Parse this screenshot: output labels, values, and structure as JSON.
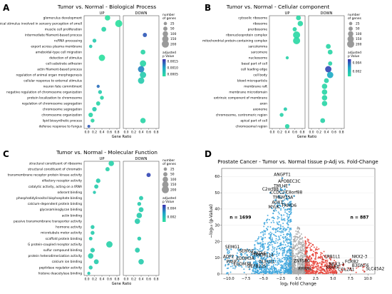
{
  "panels": [
    {
      "letter": "A",
      "title": "Tumor vs. Normal - Biological Process",
      "facets": [
        "UP",
        "DOWN"
      ],
      "xlabel": "Gene Ratio",
      "xticks": [
        "0.0",
        "0.2",
        "0.4",
        "0.6",
        "0.8"
      ],
      "size_legend_title": [
        "number",
        "of genes"
      ],
      "size_legend": [
        25,
        50,
        100,
        150,
        200
      ],
      "color_legend_title": [
        "adjusted",
        "p Value"
      ],
      "color_legend_ticks": [
        "0.0015",
        "0.0010",
        "0.0005"
      ],
      "chart_data": {
        "type": "scatter",
        "terms": [
          "glomerulus development",
          "detection of chemical stimulus involved in sensory perception of smell",
          "muscle cell proliferation",
          "intermediate filament-based process",
          "ncRNA processing",
          "export across plasma membrane",
          "ameboidal-type cell migration",
          "detection of stimulus",
          "cell-substrate adhesion",
          "actin filament-based process",
          "regulation of animal organ morphogenesis",
          "cellular response to external stimulus",
          "neuron fate commitment",
          "negative regulation of chromosome organization",
          "protein localization to chromosome",
          "regulation of chromosome segregation",
          "chromosome segregation",
          "chromosome organization",
          "lipid biosynthetic process",
          "defense response to fungus"
        ],
        "up": [
          {
            "term": "glomerulus development",
            "ratio": 0.55,
            "genes": 100,
            "p": 0.0004
          },
          {
            "term": "detection of chemical stimulus involved in sensory perception of smell",
            "ratio": 0.85,
            "genes": 200,
            "p": 0.0004
          },
          {
            "term": "muscle cell proliferation",
            "ratio": 0.45,
            "genes": 75,
            "p": 0.0005
          },
          {
            "term": "ncRNA processing",
            "ratio": 0.2,
            "genes": 40,
            "p": 0.0006
          },
          {
            "term": "export across plasma membrane",
            "ratio": 0.1,
            "genes": 25,
            "p": 0.0006
          },
          {
            "term": "detection of stimulus",
            "ratio": 0.4,
            "genes": 150,
            "p": 0.0004
          },
          {
            "term": "neuron fate commitment",
            "ratio": 0.3,
            "genes": 20,
            "p": 0.0012
          },
          {
            "term": "negative regulation of chromosome organization",
            "ratio": 0.35,
            "genes": 40,
            "p": 0.0006
          },
          {
            "term": "protein localization to chromosome",
            "ratio": 0.4,
            "genes": 40,
            "p": 0.0005
          },
          {
            "term": "regulation of chromosome segregation",
            "ratio": 0.3,
            "genes": 50,
            "p": 0.0005
          },
          {
            "term": "chromosome segregation",
            "ratio": 0.2,
            "genes": 60,
            "p": 0.0006
          },
          {
            "term": "chromosome organization",
            "ratio": 0.1,
            "genes": 60,
            "p": 0.0005
          },
          {
            "term": "lipid biosynthetic process",
            "ratio": 0.15,
            "genes": 40,
            "p": 0.0005
          },
          {
            "term": "defense response to fungus",
            "ratio": 0.05,
            "genes": 15,
            "p": 0.0013
          }
        ],
        "down": [
          {
            "term": "intermediate filament-based process",
            "ratio": 0.5,
            "genes": 50,
            "p": 0.0013
          },
          {
            "term": "ameboidal-type cell migration",
            "ratio": 0.45,
            "genes": 75,
            "p": 0.0005
          },
          {
            "term": "cell-substrate adhesion",
            "ratio": 0.45,
            "genes": 150,
            "p": 0.0005
          },
          {
            "term": "actin filament-based process",
            "ratio": 0.4,
            "genes": 150,
            "p": 0.0011
          },
          {
            "term": "regulation of animal organ morphogenesis",
            "ratio": 0.45,
            "genes": 150,
            "p": 0.0006
          },
          {
            "term": "cellular response to external stimulus",
            "ratio": 0.4,
            "genes": 150,
            "p": 0.0006
          },
          {
            "term": "lipid biosynthetic process",
            "ratio": 0.45,
            "genes": 100,
            "p": 0.0005
          }
        ]
      }
    },
    {
      "letter": "B",
      "title": "Tumor vs. Normal - Cellular component",
      "facets": [
        "UP",
        "DOWN"
      ],
      "xlabel": "Gene Ratio",
      "xticks": [
        "0.0",
        "0.2",
        "0.4",
        "0.6",
        "0.8"
      ],
      "size_legend_title": [
        "number",
        "of genes"
      ],
      "size_legend": [
        25,
        50,
        100,
        150,
        200
      ],
      "color_legend_title": [
        "adjusted",
        "p Value"
      ],
      "color_legend_ticks": [
        "0.004",
        "0.002"
      ],
      "chart_data": {
        "type": "scatter",
        "terms": [
          "cytosolic ribosome",
          "ribosome",
          "preribosome",
          "ribonucleoprotein complex",
          "mitochondrial protein-containing complex",
          "sarcolemma",
          "sarcomere",
          "nucleosome",
          "basal part of cell",
          "cell leading edge",
          "cell body",
          "blood microparticle",
          "membrane raft",
          "membrane microdomain",
          "extrinsic component of membrane",
          "axon",
          "axoneme",
          "chromosome, centromeric region",
          "apical part of cell",
          "chromosomal region"
        ],
        "up": [
          {
            "term": "cytosolic ribosome",
            "ratio": 0.7,
            "genes": 75,
            "p": 0.0007
          },
          {
            "term": "ribosome",
            "ratio": 0.75,
            "genes": 100,
            "p": 0.0007
          },
          {
            "term": "preribosome",
            "ratio": 0.6,
            "genes": 50,
            "p": 0.0008
          },
          {
            "term": "ribonucleoprotein complex",
            "ratio": 0.65,
            "genes": 200,
            "p": 0.0007
          },
          {
            "term": "mitochondrial protein-containing complex",
            "ratio": 0.65,
            "genes": 200,
            "p": 0.0007
          },
          {
            "term": "nucleosome",
            "ratio": 0.4,
            "genes": 20,
            "p": 0.0009
          },
          {
            "term": "axoneme",
            "ratio": 0.35,
            "genes": 30,
            "p": 0.0012
          },
          {
            "term": "chromosome, centromeric region",
            "ratio": 0.25,
            "genes": 40,
            "p": 0.0009
          },
          {
            "term": "chromosomal region",
            "ratio": 0.4,
            "genes": 60,
            "p": 0.0008
          }
        ],
        "down": [
          {
            "term": "sarcolemma",
            "ratio": 0.45,
            "genes": 75,
            "p": 0.0008
          },
          {
            "term": "sarcomere",
            "ratio": 0.5,
            "genes": 75,
            "p": 0.0008
          },
          {
            "term": "basal part of cell",
            "ratio": 0.5,
            "genes": 50,
            "p": 0.0009
          },
          {
            "term": "cell leading edge",
            "ratio": 0.45,
            "genes": 150,
            "p": 0.0045
          },
          {
            "term": "cell body",
            "ratio": 0.5,
            "genes": 150,
            "p": 0.0025
          },
          {
            "term": "blood microparticle",
            "ratio": 0.4,
            "genes": 75,
            "p": 0.0009
          },
          {
            "term": "membrane raft",
            "ratio": 0.35,
            "genes": 100,
            "p": 0.0008
          },
          {
            "term": "membrane microdomain",
            "ratio": 0.35,
            "genes": 100,
            "p": 0.0008
          },
          {
            "term": "extrinsic component of membrane",
            "ratio": 0.35,
            "genes": 100,
            "p": 0.0008
          },
          {
            "term": "axon",
            "ratio": 0.35,
            "genes": 100,
            "p": 0.0008
          },
          {
            "term": "apical part of cell",
            "ratio": 0.3,
            "genes": 75,
            "p": 0.0009
          }
        ]
      }
    },
    {
      "letter": "C",
      "title": "Tumor vs. Normal - Molecular Function",
      "facets": [
        "UP",
        "DOWN"
      ],
      "xlabel": "Gene Ratio",
      "xticks": [
        "0.0",
        "0.2",
        "0.4",
        "0.6",
        "0.8"
      ],
      "size_legend_title": [
        "number",
        "of genes"
      ],
      "size_legend": [
        25,
        50,
        100,
        150,
        200
      ],
      "color_legend_title": [
        "adjusted",
        "p Value"
      ],
      "color_legend_ticks": [
        "0.004",
        "0.002"
      ],
      "chart_data": {
        "type": "scatter",
        "terms": [
          "structural constituent of ribosome",
          "structural constituent of chromatin",
          "transmembrane receptor protein kinase activity",
          "olfactory receptor activity",
          "catalytic activity, acting on a tRNA",
          "odorant binding",
          "phosphatidylinositol bisphosphate binding",
          "calcium-dependent protein binding",
          "glycosaminoglycan binding",
          "actin binding",
          "passive transmembrane transporter activity",
          "hormone activity",
          "microtubule motor activity",
          "scaffold protein binding",
          "G protein-coupled receptor activity",
          "sulfur compound binding",
          "protein heterodimerization activity",
          "calcium ion binding",
          "peptidase regulator activity",
          "histone deacetylase binding"
        ],
        "up": [
          {
            "term": "structural constituent of ribosome",
            "ratio": 0.65,
            "genes": 100,
            "p": 0.001
          },
          {
            "term": "structural constituent of chromatin",
            "ratio": 0.55,
            "genes": 50,
            "p": 0.001
          },
          {
            "term": "olfactory receptor activity",
            "ratio": 0.3,
            "genes": 60,
            "p": 0.0012
          },
          {
            "term": "catalytic activity, acting on a tRNA",
            "ratio": 0.25,
            "genes": 50,
            "p": 0.0012
          },
          {
            "term": "odorant binding",
            "ratio": 0.2,
            "genes": 20,
            "p": 0.0013
          },
          {
            "term": "hormone activity",
            "ratio": 0.15,
            "genes": 40,
            "p": 0.0012
          },
          {
            "term": "microtubule motor activity",
            "ratio": 0.15,
            "genes": 40,
            "p": 0.0012
          },
          {
            "term": "scaffold protein binding",
            "ratio": 0.1,
            "genes": 30,
            "p": 0.0012
          },
          {
            "term": "G protein-coupled receptor activity",
            "ratio": 0.6,
            "genes": 150,
            "p": 0.001
          },
          {
            "term": "sulfur compound binding",
            "ratio": 0.15,
            "genes": 60,
            "p": 0.0012
          },
          {
            "term": "protein heterodimerization activity",
            "ratio": 0.1,
            "genes": 100,
            "p": 0.0011
          },
          {
            "term": "calcium ion binding",
            "ratio": 0.25,
            "genes": 75,
            "p": 0.0012
          },
          {
            "term": "peptidase regulator activity",
            "ratio": 0.1,
            "genes": 40,
            "p": 0.0012
          },
          {
            "term": "histone deacetylase binding",
            "ratio": 0.05,
            "genes": 20,
            "p": 0.0013
          }
        ],
        "down": [
          {
            "term": "transmembrane receptor protein kinase activity",
            "ratio": 0.6,
            "genes": 50,
            "p": 0.0045
          },
          {
            "term": "phosphatidylinositol bisphosphate binding",
            "ratio": 0.4,
            "genes": 50,
            "p": 0.0012
          },
          {
            "term": "calcium-dependent protein binding",
            "ratio": 0.35,
            "genes": 40,
            "p": 0.0012
          },
          {
            "term": "glycosaminoglycan binding",
            "ratio": 0.4,
            "genes": 75,
            "p": 0.0012
          },
          {
            "term": "actin binding",
            "ratio": 0.35,
            "genes": 100,
            "p": 0.0012
          },
          {
            "term": "passive transmembrane transporter activity",
            "ratio": 0.3,
            "genes": 100,
            "p": 0.0012
          },
          {
            "term": "scaffold protein binding",
            "ratio": 0.35,
            "genes": 40,
            "p": 0.0012
          },
          {
            "term": "sulfur compound binding",
            "ratio": 0.3,
            "genes": 75,
            "p": 0.0012
          },
          {
            "term": "calcium ion binding",
            "ratio": 0.4,
            "genes": 100,
            "p": 0.0012
          }
        ]
      }
    }
  ],
  "volcano": {
    "letter": "D",
    "title": "Prostate Cancer - Tumor vs. Normal tissue p-Adj vs. Fold-Change",
    "xlabel": "log₂ Fold Change",
    "ylabel": "−log₁₀ (p-Value)",
    "n_down_label": "n = 1699",
    "n_up_label": "n = 887",
    "colors": {
      "down": "#3aa3dc",
      "up": "#e8453c",
      "ns": "#a9a9a9"
    },
    "chart_data": {
      "type": "scatter",
      "xlim": [
        -11,
        11
      ],
      "ylim": [
        0,
        65
      ],
      "xticks": [
        "−10.0",
        "−7.5",
        "−5.0",
        "−2.5",
        "0.0",
        "2.5",
        "5.0",
        "7.5",
        "10.0"
      ],
      "yticks": [
        "0",
        "10",
        "20",
        "30",
        "40",
        "50",
        "60"
      ],
      "n_down": 1699,
      "n_up": 887,
      "labeled_genes": [
        {
          "gene": "ANGPT1",
          "x": -2.3,
          "y": 59
        },
        {
          "gene": "APOBEC3C",
          "x": -1.3,
          "y": 55
        },
        {
          "gene": "TMLHE",
          "x": -2.5,
          "y": 52
        },
        {
          "gene": "C2orf88",
          "x": -4.0,
          "y": 50
        },
        {
          "gene": "CCDC27",
          "x": -2.8,
          "y": 48
        },
        {
          "gene": "C8orf88",
          "x": -0.6,
          "y": 48
        },
        {
          "gene": "TMEM35A",
          "x": -2.2,
          "y": 45
        },
        {
          "gene": "AOX1",
          "x": -3.0,
          "y": 42
        },
        {
          "gene": "FRMD6",
          "x": -1.3,
          "y": 40
        },
        {
          "gene": "MYLK",
          "x": -3.5,
          "y": 39
        },
        {
          "gene": "SEMG1",
          "x": -10.2,
          "y": 15
        },
        {
          "gene": "SEMG2",
          "x": -8.2,
          "y": 12.5
        },
        {
          "gene": "SPATA6",
          "x": -6.5,
          "y": 11
        },
        {
          "gene": "AQP2",
          "x": -10.5,
          "y": 9
        },
        {
          "gene": "EDDM3A",
          "x": -8.6,
          "y": 8
        },
        {
          "gene": "TMEM114",
          "x": -5.0,
          "y": 9.5
        },
        {
          "gene": "PAEP",
          "x": -10.0,
          "y": 6
        },
        {
          "gene": "EDDM3B",
          "x": -9.0,
          "y": 4.5
        },
        {
          "gene": "DLEU2L",
          "x": -4.5,
          "y": 5.5
        },
        {
          "gene": "DEFB125",
          "x": -7.0,
          "y": 3
        },
        {
          "gene": "ZNF560",
          "x": 0.5,
          "y": 6
        },
        {
          "gene": "CRB1L1",
          "x": 3.5,
          "y": 9
        },
        {
          "gene": "NKX2-3",
          "x": 7.5,
          "y": 9
        },
        {
          "gene": "FOXB2",
          "x": 6.5,
          "y": 6
        },
        {
          "gene": "NKX3-1",
          "x": 4.2,
          "y": 4.5
        },
        {
          "gene": "SRARP",
          "x": 3.7,
          "y": 2.5
        },
        {
          "gene": "B3GNT6",
          "x": 7.5,
          "y": 3.5
        },
        {
          "gene": "RPRML",
          "x": 1.0,
          "y": 1
        },
        {
          "gene": "COL2A1",
          "x": 5.5,
          "y": 1
        },
        {
          "gene": "SLC45A2",
          "x": 9.5,
          "y": 1.5
        }
      ]
    }
  }
}
